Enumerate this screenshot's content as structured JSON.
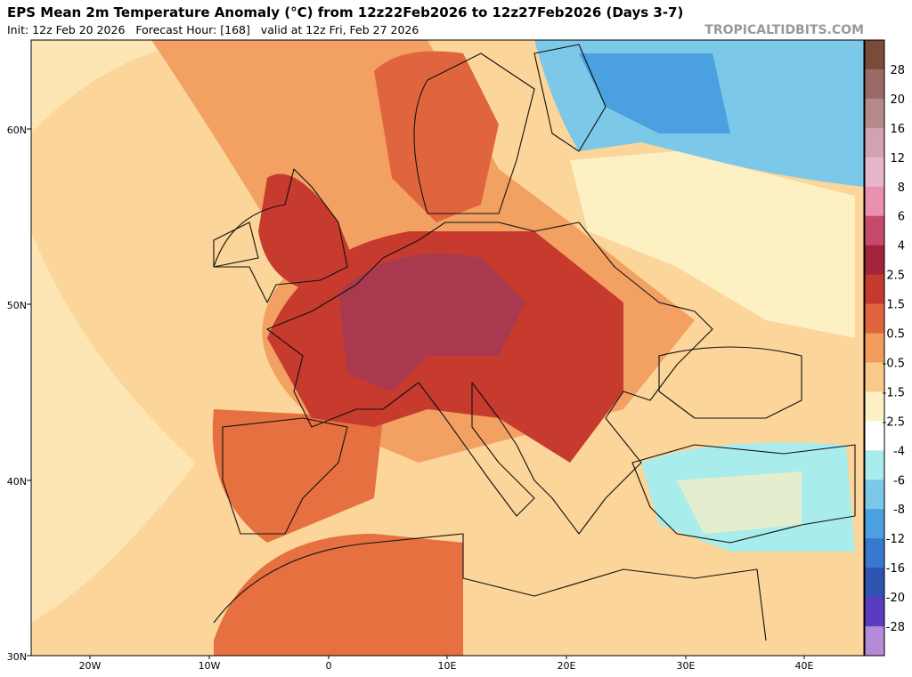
{
  "header": {
    "title": "EPS Mean 2m Temperature Anomaly (°C) from 12z22Feb2026 to 12z27Feb2026 (Days 3-7)",
    "subtitle": "Init: 12z Feb 20 2026   Forecast Hour: [168]   valid at 12z Fri, Feb 27 2026",
    "brand": "TROPICALTIDBITS.COM"
  },
  "map": {
    "lat_labels": [
      "60N",
      "50N",
      "40N",
      "30N"
    ],
    "lon_labels": [
      "20W",
      "10W",
      "0",
      "10E",
      "20E",
      "30E",
      "40E"
    ]
  },
  "colorbar": {
    "labels": [
      "28",
      "20",
      "16",
      "12",
      "8",
      "6",
      "4",
      "2.5",
      "1.5",
      "0.5",
      "-0.5",
      "-1.5",
      "-2.5",
      "-4",
      "-6",
      "-8",
      "-12",
      "-16",
      "-20",
      "-28"
    ],
    "colors": [
      "#7b4b3a",
      "#9b6a66",
      "#b68a8a",
      "#d2a2b2",
      "#e8b6ca",
      "#e98fb0",
      "#c54a6c",
      "#a3233a",
      "#c43a2c",
      "#e0653e",
      "#f29c5c",
      "#f9c98a",
      "#fdf0c2",
      "#ffffff",
      "#a9ecec",
      "#7cc8e8",
      "#4aa0e0",
      "#3878d0",
      "#2d55b0",
      "#5a3cc0",
      "#b58ad8"
    ]
  }
}
